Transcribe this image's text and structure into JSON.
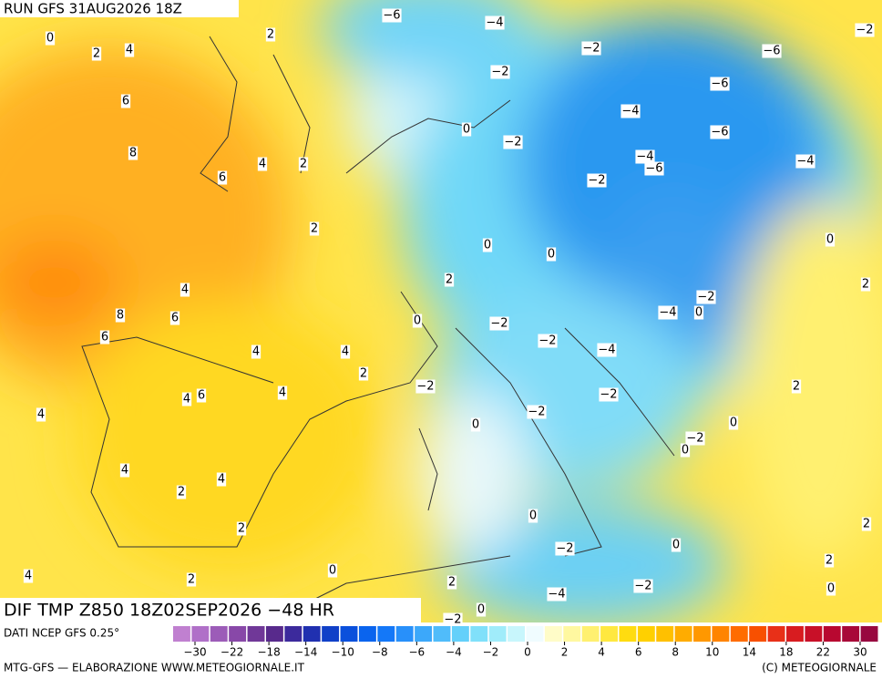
{
  "header": {
    "run": "RUN GFS 31AUG2026 18Z",
    "field": "DIF TMP Z850 18Z02SEP2026 −48 HR",
    "source": "DATI NCEP GFS 0.25°",
    "credit": "MTG-GFS — ELABORAZIONE WWW.METEOGIORNALE.IT",
    "copyright": "(C) METEOGIORNALE"
  },
  "map_labels": [
    "−6",
    "−4",
    "−2",
    "0",
    "2",
    "2",
    "4",
    "−2",
    "−6",
    "−2",
    "−6",
    "6",
    "−4",
    "0",
    "−6",
    "−2",
    "8",
    "4",
    "2",
    "−4",
    "−6",
    "−4",
    "6",
    "−2",
    "2",
    "0",
    "0",
    "0",
    "2",
    "4",
    "−2",
    "2",
    "8",
    "6",
    "0",
    "−2",
    "−4",
    "0",
    "6",
    "−2",
    "−4",
    "4",
    "4",
    "2",
    "−2",
    "4",
    "4",
    "6",
    "−2",
    "2",
    "4",
    "−2",
    "0",
    "0",
    "−2",
    "0",
    "4",
    "4",
    "2",
    "0",
    "2",
    "2",
    "−2",
    "0",
    "2",
    "4",
    "2",
    "0",
    "2",
    "−2",
    "0",
    "−4",
    "0",
    "−2"
  ],
  "colorbar": {
    "colors": [
      "#c080d0",
      "#b070c8",
      "#9c5cb8",
      "#8848a8",
      "#703898",
      "#582a8c",
      "#3c2a9c",
      "#2030b0",
      "#1040c8",
      "#0a50dc",
      "#0a64ee",
      "#1478f8",
      "#2890fa",
      "#3ca8fa",
      "#50bcfa",
      "#64d0fa",
      "#80e0fa",
      "#a0ecfa",
      "#c8f6fc",
      "#f0fcff",
      "#fffcc8",
      "#fff8a0",
      "#fff070",
      "#ffe840",
      "#ffdc10",
      "#ffd000",
      "#ffc000",
      "#ffac00",
      "#ff9800",
      "#ff8400",
      "#ff6c00",
      "#f85000",
      "#e83018",
      "#d81c20",
      "#c81028",
      "#b80830",
      "#a80838",
      "#980840"
    ],
    "ticks": [
      {
        "value": -30,
        "label": "−30"
      },
      {
        "value": -22,
        "label": "−22"
      },
      {
        "value": -18,
        "label": "−18"
      },
      {
        "value": -14,
        "label": "−14"
      },
      {
        "value": -10,
        "label": "−10"
      },
      {
        "value": -8,
        "label": "−8"
      },
      {
        "value": -6,
        "label": "−6"
      },
      {
        "value": -4,
        "label": "−4"
      },
      {
        "value": -2,
        "label": "−2"
      },
      0,
      2,
      4,
      6,
      8,
      10,
      14,
      18,
      22,
      30
    ]
  }
}
